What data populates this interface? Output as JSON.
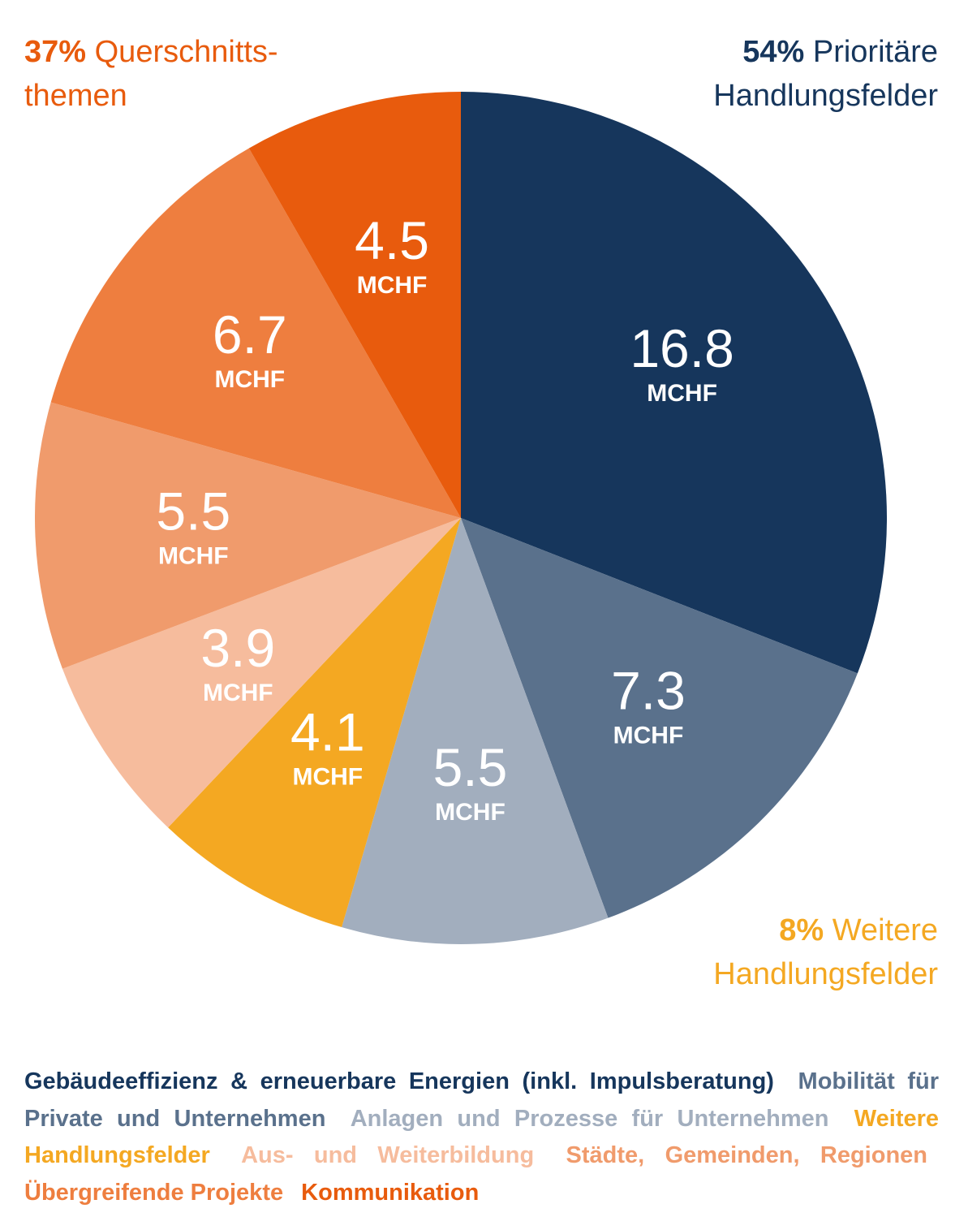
{
  "chart_data": {
    "type": "pie",
    "unit": "MCHF",
    "slices": [
      {
        "name": "Gebäudeeffizienz & erneuerbare Energien (inkl. Impulsberatung)",
        "value": 16.8,
        "label": "16.8",
        "color": "#16365c"
      },
      {
        "name": "Mobilität für Private und Unternehmen",
        "value": 7.3,
        "label": "7.3",
        "color": "#5a718c"
      },
      {
        "name": "Anlagen und Prozesse für Unternehmen",
        "value": 5.5,
        "label": "5.5",
        "color": "#a2aebe"
      },
      {
        "name": "Weitere Handlungsfelder",
        "value": 4.1,
        "label": "4.1",
        "color": "#f4a822"
      },
      {
        "name": "Aus- und Weiterbildung",
        "value": 3.9,
        "label": "3.9",
        "color": "#f6bc9d"
      },
      {
        "name": "Städte, Gemeinden, Regionen",
        "value": 5.5,
        "label": "5.5",
        "color": "#f09b6c"
      },
      {
        "name": "Übergreifende Projekte",
        "value": 6.7,
        "label": "6.7",
        "color": "#ee7e3f"
      },
      {
        "name": "Kommunikation",
        "value": 4.5,
        "label": "4.5",
        "color": "#e85b0d"
      }
    ],
    "group_labels": {
      "querschnitt": {
        "percent": "37%",
        "line1": "Querschnitts-",
        "line2": "themen",
        "color": "#e85b0d"
      },
      "prioritaer": {
        "percent": "54%",
        "line1": "Prioritäre",
        "line2": "Handlungsfelder",
        "color": "#16365c"
      },
      "weitere": {
        "percent": "8%",
        "line1": "Weitere",
        "line2": "Handlungsfelder",
        "color": "#f4a822"
      }
    }
  },
  "legend": [
    {
      "text": "Gebäudeeffizienz & erneuerbare Energien (inkl. Impulsberatung)",
      "color": "#16365c"
    },
    {
      "text": "Mobilität für Private und Unternehmen",
      "color": "#5a718c"
    },
    {
      "text": "Anlagen und Prozesse für Unternehmen",
      "color": "#a2aebe"
    },
    {
      "text": "Weitere Handlungsfelder",
      "color": "#f4a822"
    },
    {
      "text": "Aus- und Weiterbildung",
      "color": "#f6bc9d"
    },
    {
      "text": "Städte, Gemeinden, Regionen",
      "color": "#f09b6c"
    },
    {
      "text": "Übergreifende Projekte",
      "color": "#ee7e3f"
    },
    {
      "text": "Kommunikation",
      "color": "#e85b0d"
    }
  ]
}
